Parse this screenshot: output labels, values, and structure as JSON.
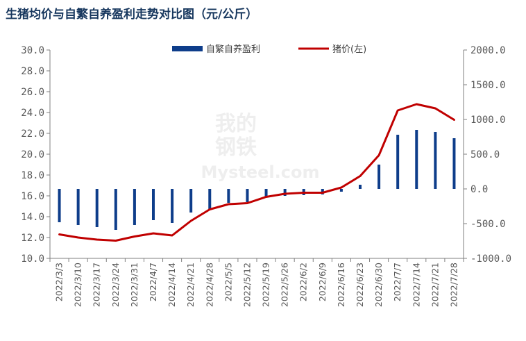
{
  "title": "生猪均价与自繁自养盈利走势对比图（元/公斤）",
  "watermark": {
    "top": "我的",
    "middle": "钢铁",
    "bottom": "Mysteel.com"
  },
  "colors": {
    "bars": "#0e3d8a",
    "line": "#c00000",
    "axis": "#7f7f7f",
    "title": "#17375e"
  },
  "chart_data": {
    "type": "bar+line",
    "categories": [
      "2022/3/3",
      "2022/3/10",
      "2022/3/17",
      "2022/3/24",
      "2022/3/31",
      "2022/4/7",
      "2022/4/14",
      "2022/4/21",
      "2022/4/28",
      "2022/5/5",
      "2022/5/12",
      "2022/5/19",
      "2022/5/26",
      "2022/6/2",
      "2022/6/9",
      "2022/6/16",
      "2022/6/23",
      "2022/6/30",
      "2022/7/7",
      "2022/7/14",
      "2022/7/21",
      "2022/7/28"
    ],
    "y_left": {
      "lim": [
        10.0,
        30.0
      ],
      "ticks": [
        "10.0",
        "12.0",
        "14.0",
        "16.0",
        "18.0",
        "20.0",
        "22.0",
        "24.0",
        "26.0",
        "28.0",
        "30.0"
      ]
    },
    "y_right": {
      "lim": [
        -1000.0,
        2000.0
      ],
      "ticks": [
        "-1000.0",
        "-500.0",
        "0.0",
        "500.0",
        "1000.0",
        "1500.0",
        "2000.0"
      ]
    },
    "series": [
      {
        "name": "自繁自养盈利",
        "type": "bar",
        "axis": "right",
        "values": [
          -480,
          -520,
          -550,
          -590,
          -520,
          -450,
          -490,
          -340,
          -290,
          -200,
          -190,
          -120,
          -100,
          -90,
          -80,
          -40,
          60,
          350,
          780,
          850,
          820,
          730
        ]
      },
      {
        "name": "猪价(左)",
        "type": "line",
        "axis": "left",
        "values": [
          12.3,
          12.0,
          11.8,
          11.7,
          12.1,
          12.4,
          12.2,
          13.6,
          14.7,
          15.2,
          15.3,
          15.9,
          16.2,
          16.3,
          16.3,
          16.8,
          17.9,
          19.9,
          24.2,
          24.8,
          24.4,
          23.3
        ]
      }
    ],
    "legend_position": "top-center",
    "grid": false
  }
}
